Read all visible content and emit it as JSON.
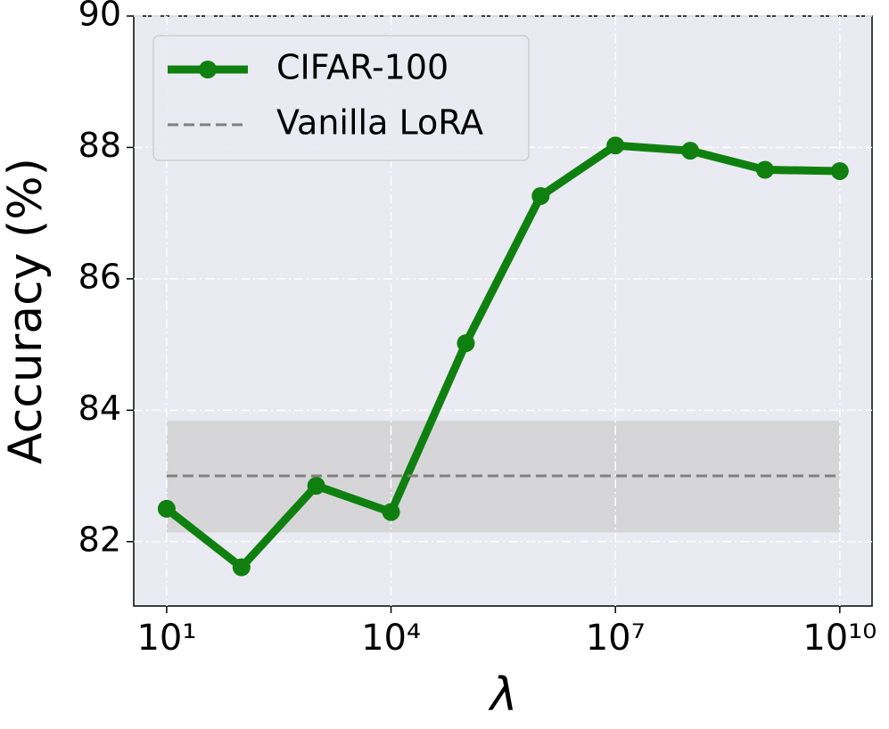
{
  "chart_data": {
    "type": "line",
    "xlabel": "λ",
    "ylabel": "Accuracy (%)",
    "xscale": "log",
    "xlim": [
      3.63,
      27000000000
    ],
    "ylim": [
      81.02,
      90
    ],
    "xticks": [
      {
        "value": 10,
        "label": "10¹"
      },
      {
        "value": 10000,
        "label": "10⁴"
      },
      {
        "value": 10000000,
        "label": "10⁷"
      },
      {
        "value": 10000000000,
        "label": "10¹⁰"
      }
    ],
    "yticks": [
      82,
      84,
      86,
      88,
      90
    ],
    "grid": true,
    "legend": "upper left",
    "series": [
      {
        "name": "CIFAR-100",
        "color": "#0f800f",
        "style": "solid",
        "x": [
          10,
          100,
          1000,
          10000,
          100000,
          1000000,
          10000000,
          100000000,
          1000000000,
          10000000000
        ],
        "values": [
          82.5,
          81.61,
          82.85,
          82.45,
          85.02,
          87.26,
          88.03,
          87.95,
          87.66,
          87.64
        ]
      },
      {
        "name": "Vanilla LoRA",
        "color": "#808080",
        "style": "dashed",
        "x": [
          10,
          10000000000
        ],
        "values": [
          83,
          83
        ],
        "band": [
          82.14,
          83.84
        ]
      }
    ]
  }
}
